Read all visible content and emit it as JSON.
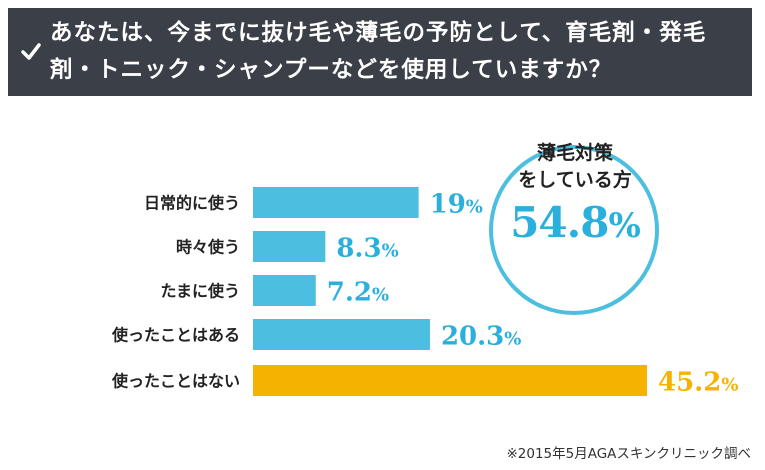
{
  "header": {
    "question": "あなたは、今までに抜け毛や薄毛の予防として、育毛剤・発毛剤・トニック・シャンプーなどを使用していますか？"
  },
  "summary": {
    "title_line1": "薄毛対策",
    "title_line2": "をしている方",
    "value": "54.8",
    "unit": "%"
  },
  "source": "※2015年5月AGAスキンクリニック調べ",
  "colors": {
    "header_bg": "#3b3f48",
    "bar_blue": "#4cbfe0",
    "bar_orange": "#f5b300",
    "value_blue": "#2bb0dd",
    "value_orange": "#f5b300",
    "circle_border": "#4cbfe0"
  },
  "chart_data": {
    "type": "bar",
    "orientation": "horizontal",
    "categories": [
      "日常的に使う",
      "時々使う",
      "たまに使う",
      "使ったことはある",
      "使ったことはない"
    ],
    "values": [
      19,
      8.3,
      7.2,
      20.3,
      45.2
    ],
    "value_labels": [
      "19",
      "8.3",
      "7.2",
      "20.3",
      "45.2"
    ],
    "unit": "%",
    "highlight_index": 4,
    "xlim": [
      0,
      45.2
    ],
    "grid": false
  }
}
